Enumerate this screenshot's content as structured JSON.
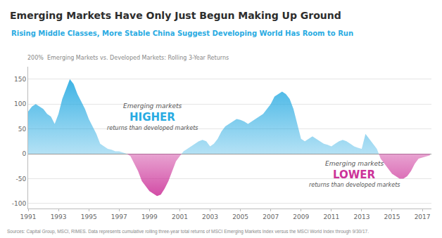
{
  "chart_data": {
    "type": "area",
    "title": "Emerging Markets Have Only Just Begun Making Up Ground",
    "subtitle": "Rising Middle Classes, More Stable China Suggest Developing World Has Room to Run",
    "chart_label": "200%  Emerging Markets vs. Developed Markets: Rolling 3-Year Returns",
    "source": "Sources: Capital Group, MSCI, RIMES. Data represents cumulative rolling three-year total returns of MSCI Emerging Markets Index versus the MSCI World Index through 9/30/17.",
    "x": [
      1991.0,
      1991.25,
      1991.5,
      1991.75,
      1992.0,
      1992.25,
      1992.5,
      1992.75,
      1993.0,
      1993.25,
      1993.5,
      1993.75,
      1994.0,
      1994.25,
      1994.5,
      1994.75,
      1995.0,
      1995.25,
      1995.5,
      1995.75,
      1996.0,
      1996.25,
      1996.5,
      1996.75,
      1997.0,
      1997.25,
      1997.5,
      1997.75,
      1998.0,
      1998.25,
      1998.5,
      1998.75,
      1999.0,
      1999.25,
      1999.5,
      1999.75,
      2000.0,
      2000.25,
      2000.5,
      2000.75,
      2001.0,
      2001.25,
      2001.5,
      2001.75,
      2002.0,
      2002.25,
      2002.5,
      2002.75,
      2003.0,
      2003.25,
      2003.5,
      2003.75,
      2004.0,
      2004.25,
      2004.5,
      2004.75,
      2005.0,
      2005.25,
      2005.5,
      2005.75,
      2006.0,
      2006.25,
      2006.5,
      2006.75,
      2007.0,
      2007.25,
      2007.5,
      2007.75,
      2008.0,
      2008.25,
      2008.5,
      2008.75,
      2009.0,
      2009.25,
      2009.5,
      2009.75,
      2010.0,
      2010.25,
      2010.5,
      2010.75,
      2011.0,
      2011.25,
      2011.5,
      2011.75,
      2012.0,
      2012.25,
      2012.5,
      2012.75,
      2013.0,
      2013.25,
      2013.5,
      2013.75,
      2014.0,
      2014.25,
      2014.5,
      2014.75,
      2015.0,
      2015.25,
      2015.5,
      2015.75,
      2016.0,
      2016.25,
      2016.5,
      2016.75,
      2017.0,
      2017.25,
      2017.5
    ],
    "values": [
      85,
      95,
      100,
      95,
      90,
      80,
      75,
      60,
      80,
      110,
      130,
      150,
      140,
      120,
      105,
      90,
      70,
      55,
      40,
      20,
      15,
      10,
      8,
      5,
      5,
      3,
      0,
      -5,
      -20,
      -35,
      -55,
      -65,
      -75,
      -80,
      -85,
      -82,
      -70,
      -55,
      -35,
      -15,
      -5,
      5,
      10,
      15,
      20,
      25,
      28,
      25,
      15,
      20,
      30,
      45,
      55,
      60,
      65,
      70,
      68,
      65,
      60,
      65,
      70,
      75,
      80,
      90,
      100,
      115,
      120,
      125,
      120,
      110,
      90,
      60,
      30,
      25,
      30,
      35,
      30,
      25,
      20,
      18,
      15,
      20,
      25,
      28,
      25,
      20,
      15,
      12,
      10,
      40,
      30,
      20,
      10,
      -10,
      -20,
      -30,
      -40,
      -45,
      -50,
      -50,
      -45,
      -35,
      -20,
      -10,
      -8,
      -5,
      -3
    ],
    "color": "#29abe2",
    "xlim": [
      1991,
      2017.6
    ],
    "ylim": [
      -110,
      175
    ],
    "xticks": [
      1991,
      1993,
      1995,
      1997,
      1999,
      2001,
      2003,
      2005,
      2007,
      2009,
      2011,
      2013,
      2015,
      2017
    ],
    "yticks": [
      -100,
      -50,
      0,
      50,
      100,
      150
    ],
    "grid": true,
    "annotations": [
      {
        "text": "Emerging markets"
      },
      {
        "text": "HIGHER",
        "color": "#29abe2"
      },
      {
        "text": "returns than developed markets"
      },
      {
        "text": "Emerging markets"
      },
      {
        "text": "LOWER",
        "color": "#cc3399"
      },
      {
        "text": "returns than developed markets"
      }
    ]
  }
}
